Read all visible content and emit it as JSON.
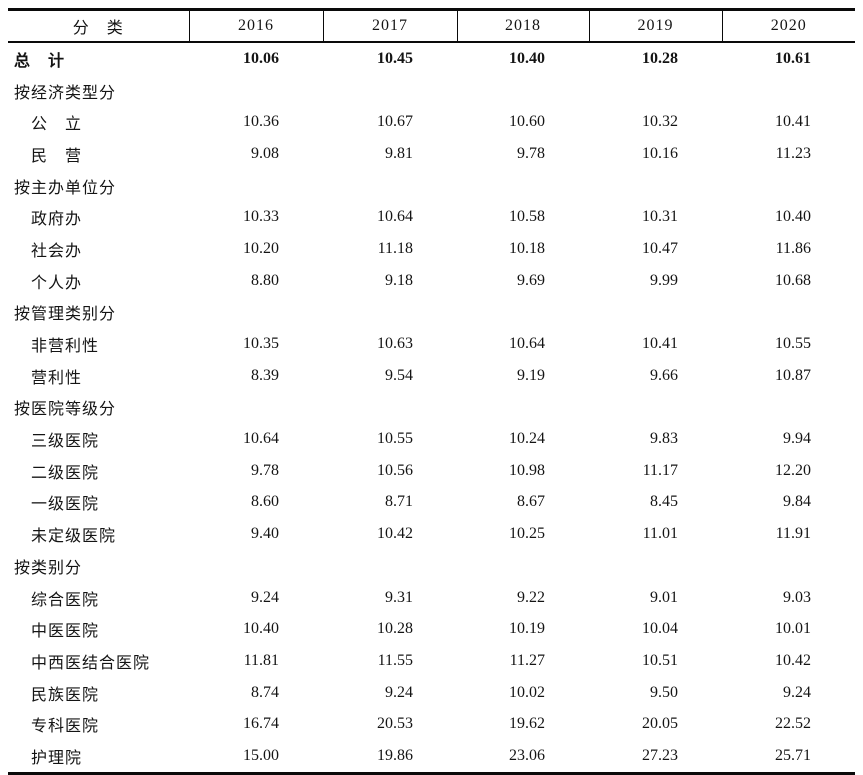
{
  "chart_data": {
    "type": "table",
    "header": {
      "category_label": "分　类",
      "years": [
        "2016",
        "2017",
        "2018",
        "2019",
        "2020"
      ]
    },
    "rows": [
      {
        "label": "总　计",
        "level": 0,
        "bold": true,
        "values": [
          "10.06",
          "10.45",
          "10.40",
          "10.28",
          "10.61"
        ]
      },
      {
        "label": "按经济类型分",
        "level": 0,
        "bold": false,
        "values": []
      },
      {
        "label": "公　立",
        "level": 1,
        "bold": false,
        "values": [
          "10.36",
          "10.67",
          "10.60",
          "10.32",
          "10.41"
        ]
      },
      {
        "label": "民　营",
        "level": 1,
        "bold": false,
        "values": [
          "9.08",
          "9.81",
          "9.78",
          "10.16",
          "11.23"
        ]
      },
      {
        "label": "按主办单位分",
        "level": 0,
        "bold": false,
        "values": []
      },
      {
        "label": "政府办",
        "level": 1,
        "bold": false,
        "values": [
          "10.33",
          "10.64",
          "10.58",
          "10.31",
          "10.40"
        ]
      },
      {
        "label": "社会办",
        "level": 1,
        "bold": false,
        "values": [
          "10.20",
          "11.18",
          "10.18",
          "10.47",
          "11.86"
        ]
      },
      {
        "label": "个人办",
        "level": 1,
        "bold": false,
        "values": [
          "8.80",
          "9.18",
          "9.69",
          "9.99",
          "10.68"
        ]
      },
      {
        "label": "按管理类别分",
        "level": 0,
        "bold": false,
        "values": []
      },
      {
        "label": "非营利性",
        "level": 1,
        "bold": false,
        "values": [
          "10.35",
          "10.63",
          "10.64",
          "10.41",
          "10.55"
        ]
      },
      {
        "label": "营利性",
        "level": 1,
        "bold": false,
        "values": [
          "8.39",
          "9.54",
          "9.19",
          "9.66",
          "10.87"
        ]
      },
      {
        "label": "按医院等级分",
        "level": 0,
        "bold": false,
        "values": []
      },
      {
        "label": "三级医院",
        "level": 1,
        "bold": false,
        "values": [
          "10.64",
          "10.55",
          "10.24",
          "9.83",
          "9.94"
        ]
      },
      {
        "label": "二级医院",
        "level": 1,
        "bold": false,
        "values": [
          "9.78",
          "10.56",
          "10.98",
          "11.17",
          "12.20"
        ]
      },
      {
        "label": "一级医院",
        "level": 1,
        "bold": false,
        "values": [
          "8.60",
          "8.71",
          "8.67",
          "8.45",
          "9.84"
        ]
      },
      {
        "label": "未定级医院",
        "level": 1,
        "bold": false,
        "values": [
          "9.40",
          "10.42",
          "10.25",
          "11.01",
          "11.91"
        ]
      },
      {
        "label": "按类别分",
        "level": 0,
        "bold": false,
        "values": []
      },
      {
        "label": "综合医院",
        "level": 1,
        "bold": false,
        "values": [
          "9.24",
          "9.31",
          "9.22",
          "9.01",
          "9.03"
        ]
      },
      {
        "label": "中医医院",
        "level": 1,
        "bold": false,
        "values": [
          "10.40",
          "10.28",
          "10.19",
          "10.04",
          "10.01"
        ]
      },
      {
        "label": "中西医结合医院",
        "level": 1,
        "bold": false,
        "values": [
          "11.81",
          "11.55",
          "11.27",
          "10.51",
          "10.42"
        ]
      },
      {
        "label": "民族医院",
        "level": 1,
        "bold": false,
        "values": [
          "8.74",
          "9.24",
          "10.02",
          "9.50",
          "9.24"
        ]
      },
      {
        "label": "专科医院",
        "level": 1,
        "bold": false,
        "values": [
          "16.74",
          "20.53",
          "19.62",
          "20.05",
          "22.52"
        ]
      },
      {
        "label": "护理院",
        "level": 1,
        "bold": false,
        "values": [
          "15.00",
          "19.86",
          "23.06",
          "27.23",
          "25.71"
        ]
      }
    ]
  }
}
